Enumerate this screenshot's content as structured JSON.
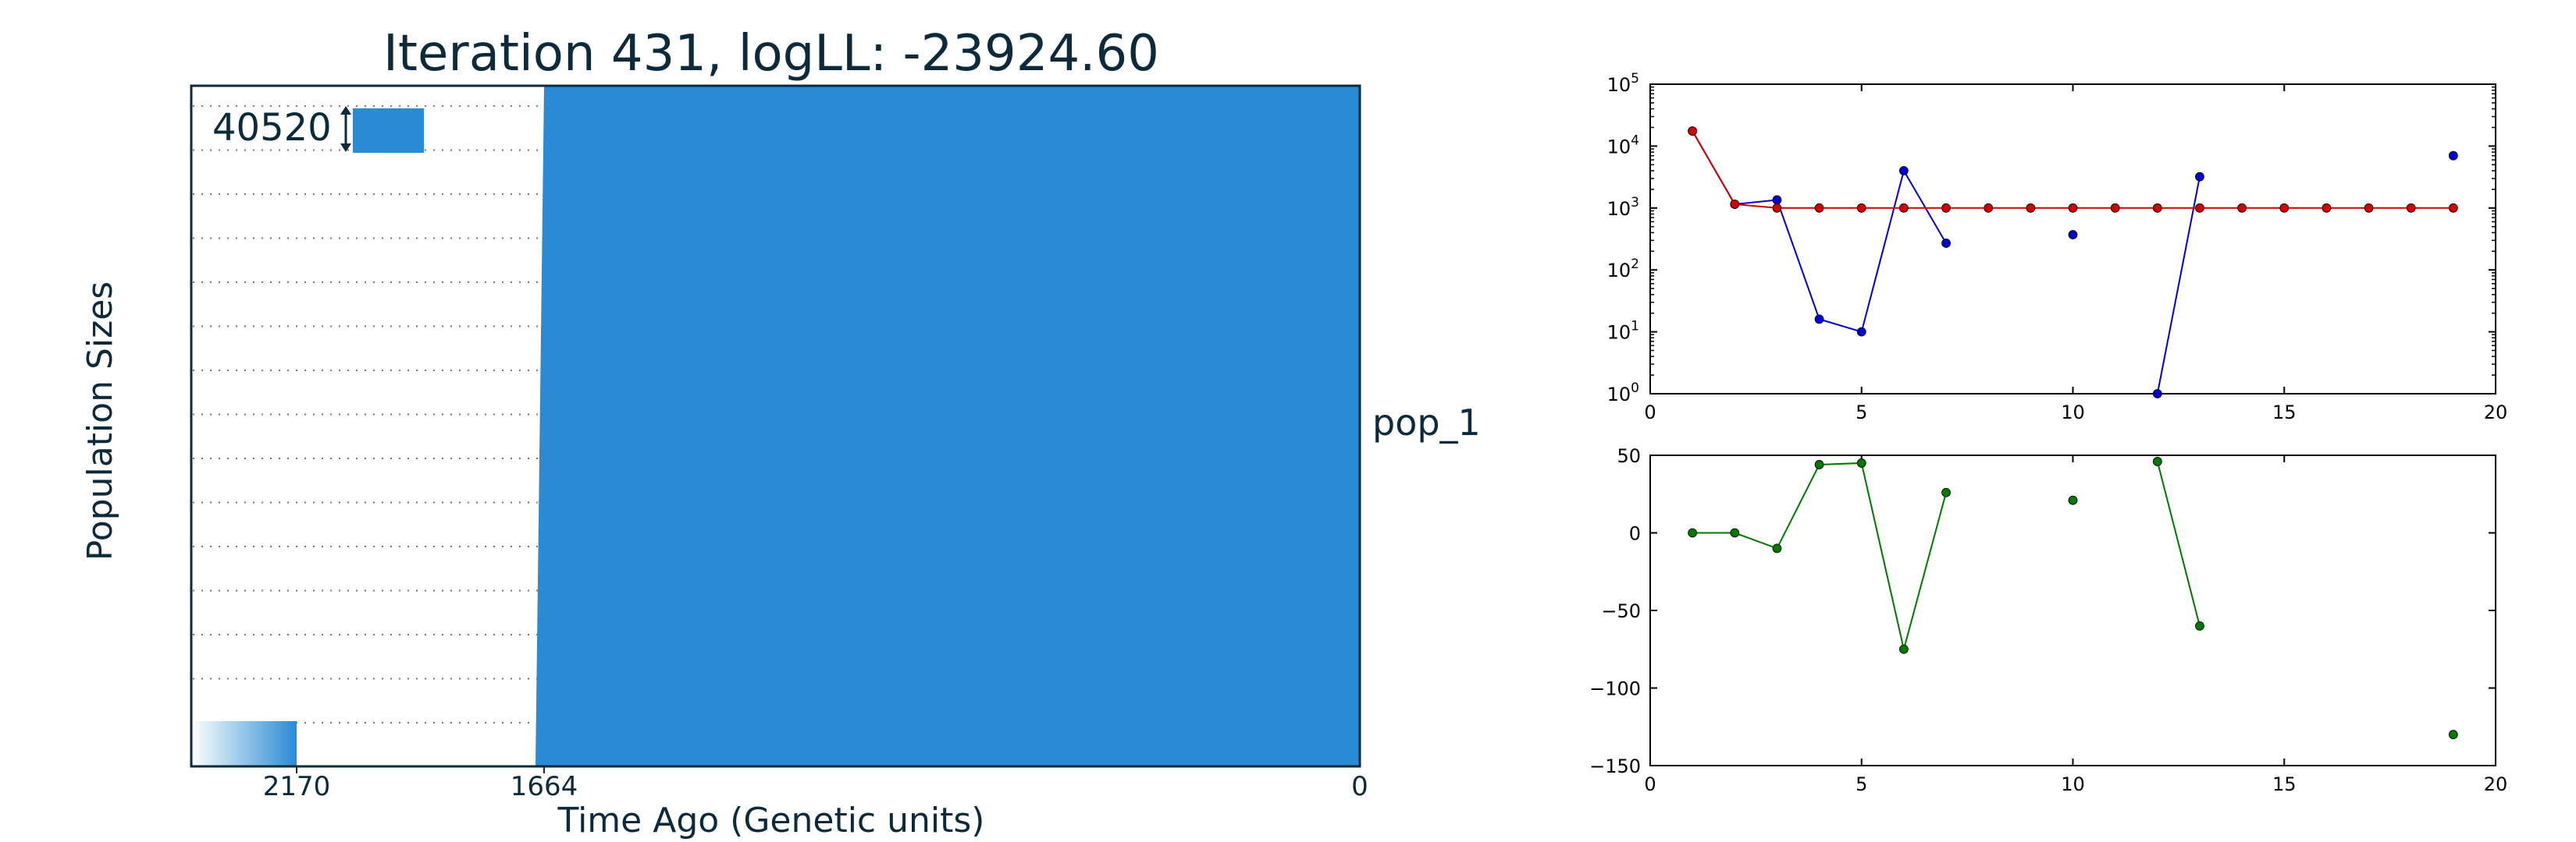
{
  "left_panel": {
    "title": "Iteration 431, logLL:  -23924.60",
    "ylabel": "Population Sizes",
    "xlabel": "Time Ago (Genetic units)",
    "scale_bar_label": "40520",
    "population_label": "pop_1",
    "time_ticks": [
      "2170",
      "1664",
      "0"
    ],
    "colors": {
      "population_fill": "#2a8bd4",
      "frame": "#0d2a3a"
    }
  },
  "chart_data": [
    {
      "type": "scatter",
      "subtype": "line-with-markers",
      "yscale": "log",
      "xlim": [
        0,
        20
      ],
      "ylim": [
        1,
        100000
      ],
      "x_ticks": [
        0,
        5,
        10,
        15,
        20
      ],
      "y_ticks": [
        "10^0",
        "10^1",
        "10^2",
        "10^3",
        "10^4",
        "10^5"
      ],
      "grid": false,
      "series": [
        {
          "color": "#0000cc",
          "points": [
            [
              1,
              17500
            ],
            [
              2,
              1150
            ],
            [
              3,
              1350
            ],
            [
              4,
              16
            ],
            [
              5,
              10
            ],
            [
              6,
              4000
            ],
            [
              7,
              270
            ],
            [
              10,
              370
            ],
            [
              12,
              1
            ],
            [
              13,
              3200
            ],
            [
              19,
              7000
            ]
          ],
          "segments": [
            [
              0,
              1,
              2,
              3,
              4,
              5,
              6
            ],
            [
              8,
              9
            ]
          ]
        },
        {
          "color": "#cc0000",
          "points": [
            [
              1,
              17500
            ],
            [
              2,
              1150
            ],
            [
              3,
              1000
            ],
            [
              4,
              1000
            ],
            [
              5,
              1000
            ],
            [
              6,
              1000
            ],
            [
              7,
              1000
            ],
            [
              8,
              1000
            ],
            [
              9,
              1000
            ],
            [
              10,
              1000
            ],
            [
              11,
              1000
            ],
            [
              12,
              1000
            ],
            [
              13,
              1000
            ],
            [
              14,
              1000
            ],
            [
              15,
              1000
            ],
            [
              16,
              1000
            ],
            [
              17,
              1000
            ],
            [
              18,
              1000
            ],
            [
              19,
              1000
            ]
          ],
          "segments": [
            [
              0,
              1,
              2,
              3,
              4,
              5,
              6,
              7,
              8,
              9,
              10,
              11,
              12,
              13,
              14,
              15,
              16,
              17,
              18
            ]
          ]
        }
      ]
    },
    {
      "type": "scatter",
      "subtype": "line-with-markers",
      "xlim": [
        0,
        20
      ],
      "ylim": [
        -150,
        50
      ],
      "x_ticks": [
        0,
        5,
        10,
        15,
        20
      ],
      "y_ticks": [
        50,
        0,
        -50,
        -100,
        -150
      ],
      "grid": false,
      "series": [
        {
          "color": "#007700",
          "points": [
            [
              1,
              0
            ],
            [
              2,
              0
            ],
            [
              3,
              -10
            ],
            [
              4,
              44
            ],
            [
              5,
              45
            ],
            [
              6,
              -75
            ],
            [
              7,
              26
            ],
            [
              10,
              21
            ],
            [
              12,
              46
            ],
            [
              13,
              -60
            ],
            [
              19,
              -130
            ]
          ],
          "segments": [
            [
              0,
              1,
              2,
              3,
              4,
              5,
              6
            ],
            [
              8,
              9
            ]
          ]
        }
      ]
    }
  ]
}
